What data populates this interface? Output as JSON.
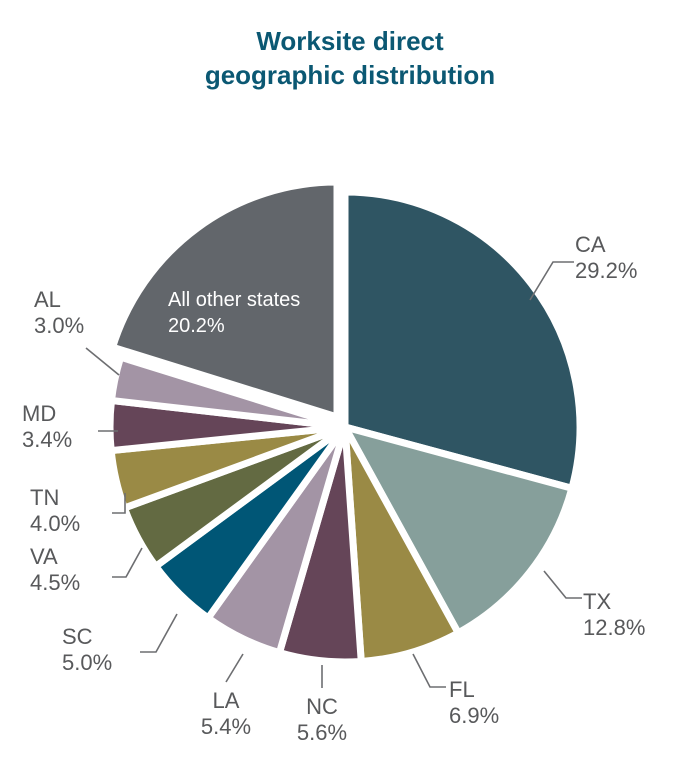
{
  "chart_data": {
    "type": "pie",
    "title_lines": [
      "Worksite direct",
      "geographic distribution"
    ],
    "slices": [
      {
        "label": "CA",
        "value": 29.2,
        "value_text": "29.2%",
        "color": "#2f5563"
      },
      {
        "label": "TX",
        "value": 12.8,
        "value_text": "12.8%",
        "color": "#869f9b"
      },
      {
        "label": "FL",
        "value": 6.9,
        "value_text": "6.9%",
        "color": "#9a8a45"
      },
      {
        "label": "NC",
        "value": 5.6,
        "value_text": "5.6%",
        "color": "#654558"
      },
      {
        "label": "LA",
        "value": 5.4,
        "value_text": "5.4%",
        "color": "#a394a5"
      },
      {
        "label": "SC",
        "value": 5.0,
        "value_text": "5.0%",
        "color": "#005676"
      },
      {
        "label": "VA",
        "value": 4.5,
        "value_text": "4.5%",
        "color": "#636a42"
      },
      {
        "label": "TN",
        "value": 4.0,
        "value_text": "4.0%",
        "color": "#9a8a45"
      },
      {
        "label": "MD",
        "value": 3.4,
        "value_text": "3.4%",
        "color": "#654558"
      },
      {
        "label": "AL",
        "value": 3.0,
        "value_text": "3.0%",
        "color": "#a394a5"
      },
      {
        "label": "All other states",
        "value": 20.2,
        "value_text": "20.2%",
        "color": "#62666b",
        "label_inside": true,
        "exploded": true
      }
    ]
  }
}
